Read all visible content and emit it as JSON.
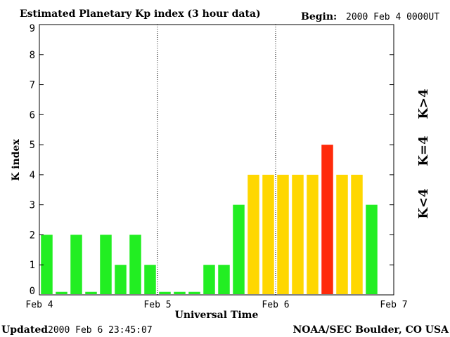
{
  "header": {
    "title": "Estimated Planetary Kp index (3 hour data)",
    "begin_label": "Begin:",
    "begin_value": "2000 Feb 4 0000UT"
  },
  "footer": {
    "updated_label": "Updated",
    "updated_value": "2000 Feb  6 23:45:07",
    "credit": "NOAA/SEC Boulder, CO USA"
  },
  "legend": {
    "low": "K<4",
    "mid": "K=4",
    "high": "K>4"
  },
  "colors": {
    "low": "#22ee22",
    "mid": "#ffd700",
    "high": "#ff2a0a"
  },
  "chart_data": {
    "type": "bar",
    "title": "Estimated Planetary Kp index (3 hour data)",
    "xlabel": "Universal Time",
    "ylabel": "K index",
    "ylim": [
      0,
      9
    ],
    "yticks": [
      "0",
      "1",
      "2",
      "3",
      "4",
      "5",
      "6",
      "7",
      "8",
      "9"
    ],
    "xtick_labels": [
      "Feb 4",
      "Feb 5",
      "Feb 6",
      "Feb 7"
    ],
    "bars_per_day": 8,
    "values": [
      2,
      0,
      2,
      0,
      2,
      1,
      2,
      1,
      0,
      0,
      0,
      1,
      1,
      3,
      4,
      4,
      4,
      4,
      4,
      5,
      4,
      4,
      3
    ],
    "day_separators": "dotted"
  }
}
